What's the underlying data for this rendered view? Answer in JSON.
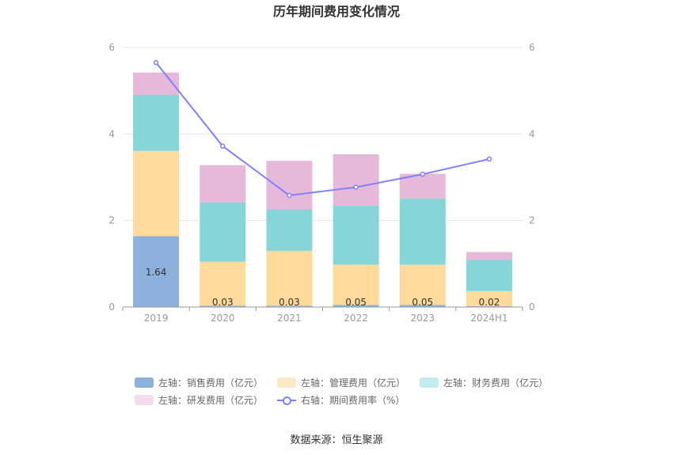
{
  "chart_data": {
    "type": "bar",
    "title": "历年期间费用变化情况",
    "categories": [
      "2019",
      "2020",
      "2021",
      "2022",
      "2023",
      "2024H1"
    ],
    "left_axis": {
      "ylim": [
        0,
        6
      ],
      "ticks": [
        "0",
        "2",
        "4",
        "6"
      ]
    },
    "right_axis": {
      "ylim": [
        0,
        6
      ],
      "ticks": [
        "0",
        "2",
        "4",
        "6"
      ]
    },
    "series": [
      {
        "name": "左轴：销售费用（亿元）",
        "type": "bar",
        "color": "#8eb0dc",
        "values": [
          1.64,
          0.03,
          0.03,
          0.05,
          0.05,
          0.02
        ],
        "labels": [
          "1.64",
          "0.03",
          "0.03",
          "0.05",
          "0.05",
          "0.02"
        ]
      },
      {
        "name": "左轴：管理费用（亿元）",
        "type": "bar",
        "color": "#fedb9b",
        "values": [
          1.97,
          1.02,
          1.27,
          0.93,
          0.93,
          0.35
        ]
      },
      {
        "name": "左轴：财务费用（亿元）",
        "type": "bar",
        "color": "#86d6d9",
        "values": [
          1.3,
          1.37,
          0.96,
          1.36,
          1.53,
          0.72
        ]
      },
      {
        "name": "左轴：研发费用（亿元）",
        "type": "bar",
        "color": "#e6b9da",
        "values": [
          0.51,
          0.86,
          1.12,
          1.19,
          0.57,
          0.18
        ]
      },
      {
        "name": "右轴：期间费用率（%）",
        "type": "line",
        "color": "#8080ff",
        "values": [
          5.65,
          3.72,
          2.58,
          2.77,
          3.07,
          3.42
        ]
      }
    ],
    "grid": true,
    "legend_position": "bottom"
  },
  "source": "数据来源：恒生聚源"
}
